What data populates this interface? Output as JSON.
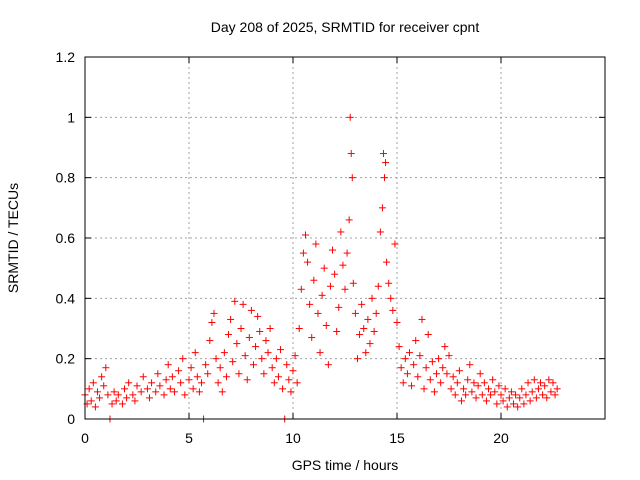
{
  "chart_data": {
    "type": "scatter",
    "title": "Day 208 of 2025, SRMTID for receiver cpnt",
    "xlabel": "GPS time / hours",
    "ylabel": "SRMTID / TECUs",
    "xlim": [
      0,
      25
    ],
    "ylim": [
      0,
      1.2
    ],
    "xticks": [
      0,
      5,
      10,
      15,
      20
    ],
    "xtick_labels": [
      "0",
      "5",
      "10",
      "15",
      "20"
    ],
    "yticks": [
      0,
      0.2,
      0.4,
      0.6,
      0.8,
      1.0,
      1.2
    ],
    "ytick_labels": [
      "0",
      "0.2",
      "0.4",
      "0.6",
      "0.8",
      "1",
      "1.2"
    ],
    "grid": true,
    "marker": "plus",
    "marker_color": "#ff0000",
    "series": [
      {
        "name": "SRMTID",
        "points": [
          [
            0.0,
            0.08
          ],
          [
            0.1,
            0.05
          ],
          [
            0.2,
            0.1
          ],
          [
            0.3,
            0.06
          ],
          [
            0.4,
            0.12
          ],
          [
            0.5,
            0.04
          ],
          [
            0.6,
            0.09
          ],
          [
            0.7,
            0.07
          ],
          [
            0.8,
            0.14
          ],
          [
            0.9,
            0.11
          ],
          [
            1.0,
            0.17
          ],
          [
            1.1,
            0.08
          ],
          [
            1.2,
            0.0
          ],
          [
            1.3,
            0.05
          ],
          [
            1.4,
            0.09
          ],
          [
            1.5,
            0.06
          ],
          [
            1.6,
            0.08
          ],
          [
            1.8,
            0.05
          ],
          [
            1.9,
            0.1
          ],
          [
            2.0,
            0.07
          ],
          [
            2.1,
            0.12
          ],
          [
            2.3,
            0.08
          ],
          [
            2.4,
            0.06
          ],
          [
            2.5,
            0.11
          ],
          [
            2.7,
            0.09
          ],
          [
            2.8,
            0.14
          ],
          [
            3.0,
            0.1
          ],
          [
            3.1,
            0.07
          ],
          [
            3.2,
            0.12
          ],
          [
            3.4,
            0.09
          ],
          [
            3.5,
            0.15
          ],
          [
            3.6,
            0.11
          ],
          [
            3.8,
            0.08
          ],
          [
            3.9,
            0.13
          ],
          [
            4.0,
            0.18
          ],
          [
            4.1,
            0.1
          ],
          [
            4.2,
            0.14
          ],
          [
            4.3,
            0.09
          ],
          [
            4.5,
            0.16
          ],
          [
            4.6,
            0.12
          ],
          [
            4.7,
            0.2
          ],
          [
            4.8,
            0.08
          ],
          [
            5.0,
            0.13
          ],
          [
            5.1,
            0.17
          ],
          [
            5.2,
            0.1
          ],
          [
            5.3,
            0.22
          ],
          [
            5.4,
            0.14
          ],
          [
            5.5,
            0.09
          ],
          [
            5.6,
            0.12
          ],
          [
            5.7,
            0.0
          ],
          [
            5.8,
            0.18
          ],
          [
            5.9,
            0.15
          ],
          [
            6.0,
            0.26
          ],
          [
            6.1,
            0.32
          ],
          [
            6.2,
            0.35
          ],
          [
            6.3,
            0.2
          ],
          [
            6.4,
            0.12
          ],
          [
            6.5,
            0.17
          ],
          [
            6.6,
            0.09
          ],
          [
            6.7,
            0.22
          ],
          [
            6.8,
            0.14
          ],
          [
            6.9,
            0.28
          ],
          [
            7.0,
            0.33
          ],
          [
            7.1,
            0.19
          ],
          [
            7.2,
            0.39
          ],
          [
            7.3,
            0.25
          ],
          [
            7.4,
            0.15
          ],
          [
            7.5,
            0.3
          ],
          [
            7.6,
            0.38
          ],
          [
            7.7,
            0.21
          ],
          [
            7.8,
            0.13
          ],
          [
            7.9,
            0.27
          ],
          [
            8.0,
            0.36
          ],
          [
            8.1,
            0.18
          ],
          [
            8.2,
            0.24
          ],
          [
            8.3,
            0.34
          ],
          [
            8.4,
            0.29
          ],
          [
            8.5,
            0.2
          ],
          [
            8.6,
            0.15
          ],
          [
            8.7,
            0.26
          ],
          [
            8.8,
            0.22
          ],
          [
            8.9,
            0.3
          ],
          [
            9.0,
            0.17
          ],
          [
            9.1,
            0.12
          ],
          [
            9.2,
            0.2
          ],
          [
            9.3,
            0.14
          ],
          [
            9.4,
            0.23
          ],
          [
            9.5,
            0.1
          ],
          [
            9.6,
            0.0
          ],
          [
            9.7,
            0.18
          ],
          [
            9.8,
            0.13
          ],
          [
            9.9,
            0.09
          ],
          [
            10.0,
            0.16
          ],
          [
            10.1,
            0.21
          ],
          [
            10.2,
            0.12
          ],
          [
            10.3,
            0.3
          ],
          [
            10.4,
            0.43
          ],
          [
            10.5,
            0.55
          ],
          [
            10.6,
            0.61
          ],
          [
            10.7,
            0.52
          ],
          [
            10.8,
            0.38
          ],
          [
            10.9,
            0.27
          ],
          [
            11.0,
            0.46
          ],
          [
            11.1,
            0.58
          ],
          [
            11.2,
            0.35
          ],
          [
            11.3,
            0.22
          ],
          [
            11.4,
            0.41
          ],
          [
            11.5,
            0.5
          ],
          [
            11.6,
            0.31
          ],
          [
            11.7,
            0.18
          ],
          [
            11.8,
            0.44
          ],
          [
            11.9,
            0.56
          ],
          [
            12.0,
            0.48
          ],
          [
            12.1,
            0.29
          ],
          [
            12.2,
            0.37
          ],
          [
            12.3,
            0.62
          ],
          [
            12.4,
            0.51
          ],
          [
            12.5,
            0.43
          ],
          [
            12.6,
            0.55
          ],
          [
            12.7,
            0.66
          ],
          [
            12.75,
            1.0
          ],
          [
            12.8,
            0.88
          ],
          [
            12.85,
            0.8
          ],
          [
            12.9,
            0.45
          ],
          [
            13.0,
            0.35
          ],
          [
            13.1,
            0.2
          ],
          [
            13.2,
            0.28
          ],
          [
            13.3,
            0.38
          ],
          [
            13.4,
            0.3
          ],
          [
            13.5,
            0.22
          ],
          [
            13.6,
            0.33
          ],
          [
            13.7,
            0.25
          ],
          [
            13.8,
            0.4
          ],
          [
            13.9,
            0.29
          ],
          [
            14.0,
            0.35
          ],
          [
            14.1,
            0.44
          ],
          [
            14.2,
            0.62
          ],
          [
            14.3,
            0.7
          ],
          [
            14.35,
            0.88
          ],
          [
            14.4,
            0.8
          ],
          [
            14.45,
            0.85
          ],
          [
            14.5,
            0.52
          ],
          [
            14.6,
            0.45
          ],
          [
            14.7,
            0.4
          ],
          [
            14.8,
            0.36
          ],
          [
            14.9,
            0.58
          ],
          [
            15.0,
            0.32
          ],
          [
            15.1,
            0.24
          ],
          [
            15.2,
            0.17
          ],
          [
            15.3,
            0.12
          ],
          [
            15.4,
            0.2
          ],
          [
            15.5,
            0.15
          ],
          [
            15.6,
            0.22
          ],
          [
            15.7,
            0.11
          ],
          [
            15.8,
            0.18
          ],
          [
            15.9,
            0.26
          ],
          [
            16.0,
            0.14
          ],
          [
            16.1,
            0.21
          ],
          [
            16.2,
            0.33
          ],
          [
            16.3,
            0.1
          ],
          [
            16.4,
            0.17
          ],
          [
            16.5,
            0.28
          ],
          [
            16.6,
            0.13
          ],
          [
            16.7,
            0.19
          ],
          [
            16.8,
            0.09
          ],
          [
            16.9,
            0.15
          ],
          [
            17.0,
            0.2
          ],
          [
            17.1,
            0.12
          ],
          [
            17.2,
            0.17
          ],
          [
            17.3,
            0.24
          ],
          [
            17.4,
            0.15
          ],
          [
            17.5,
            0.21
          ],
          [
            17.6,
            0.1
          ],
          [
            17.7,
            0.14
          ],
          [
            17.8,
            0.08
          ],
          [
            17.9,
            0.12
          ],
          [
            18.0,
            0.16
          ],
          [
            18.1,
            0.06
          ],
          [
            18.2,
            0.1
          ],
          [
            18.3,
            0.08
          ],
          [
            18.4,
            0.13
          ],
          [
            18.5,
            0.18
          ],
          [
            18.6,
            0.09
          ],
          [
            18.7,
            0.12
          ],
          [
            18.8,
            0.07
          ],
          [
            18.9,
            0.11
          ],
          [
            19.0,
            0.15
          ],
          [
            19.1,
            0.08
          ],
          [
            19.2,
            0.12
          ],
          [
            19.3,
            0.06
          ],
          [
            19.4,
            0.1
          ],
          [
            19.5,
            0.08
          ],
          [
            19.6,
            0.13
          ],
          [
            19.7,
            0.09
          ],
          [
            19.8,
            0.05
          ],
          [
            19.9,
            0.11
          ],
          [
            20.0,
            0.08
          ],
          [
            20.1,
            0.06
          ],
          [
            20.2,
            0.1
          ],
          [
            20.3,
            0.04
          ],
          [
            20.4,
            0.07
          ],
          [
            20.5,
            0.09
          ],
          [
            20.6,
            0.05
          ],
          [
            20.7,
            0.08
          ],
          [
            20.8,
            0.04
          ],
          [
            20.9,
            0.07
          ],
          [
            21.0,
            0.1
          ],
          [
            21.1,
            0.05
          ],
          [
            21.2,
            0.08
          ],
          [
            21.3,
            0.12
          ],
          [
            21.4,
            0.06
          ],
          [
            21.5,
            0.09
          ],
          [
            21.6,
            0.13
          ],
          [
            21.7,
            0.07
          ],
          [
            21.8,
            0.1
          ],
          [
            21.9,
            0.12
          ],
          [
            22.0,
            0.08
          ],
          [
            22.1,
            0.11
          ],
          [
            22.2,
            0.07
          ],
          [
            22.3,
            0.13
          ],
          [
            22.4,
            0.09
          ],
          [
            22.5,
            0.12
          ],
          [
            22.6,
            0.08
          ],
          [
            22.7,
            0.1
          ]
        ]
      }
    ]
  }
}
